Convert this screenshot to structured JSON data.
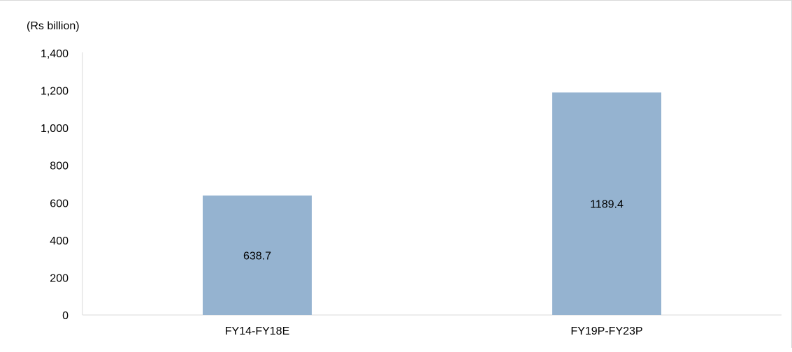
{
  "chart_data": {
    "type": "bar",
    "unit_label": "(Rs billion)",
    "categories": [
      "FY14-FY18E",
      "FY19P-FY23P"
    ],
    "values": [
      638.7,
      1189.4
    ],
    "value_labels": [
      "638.7",
      "1189.4"
    ],
    "yticks": [
      0,
      200,
      400,
      600,
      800,
      1000,
      1200,
      1400
    ],
    "ytick_labels": [
      "0",
      "200",
      "400",
      "600",
      "800",
      "1,000",
      "1,200",
      "1,400"
    ],
    "ylim": [
      0,
      1400
    ],
    "grid": false,
    "legend": "none",
    "colors": {
      "bar": "#95b3d0",
      "axis": "#d9d9d9",
      "text": "#000000"
    }
  }
}
